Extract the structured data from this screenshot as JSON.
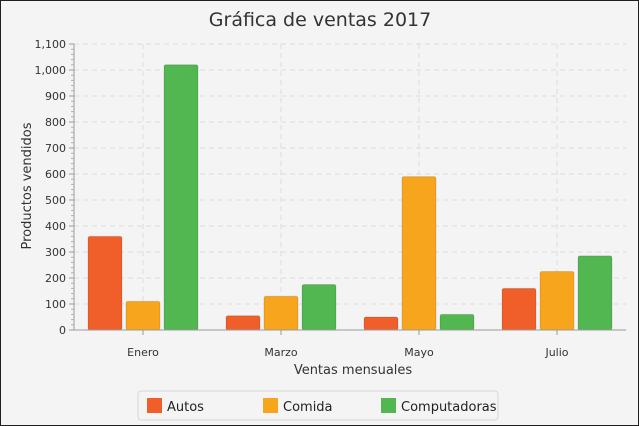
{
  "chart_data": {
    "type": "bar",
    "title": "Gráfica de ventas 2017",
    "xlabel": "Ventas mensuales",
    "ylabel": "Productos vendidos",
    "categories": [
      "Enero",
      "Marzo",
      "Mayo",
      "Julio"
    ],
    "ylim": [
      0,
      1100
    ],
    "ytick_labels": [
      "0",
      "100",
      "200",
      "300",
      "400",
      "500",
      "600",
      "700",
      "800",
      "900",
      "1,000",
      "1,100"
    ],
    "grid": true,
    "legend_position": "bottom",
    "series": [
      {
        "name": "Autos",
        "color": "#f05f2a",
        "values": [
          360,
          55,
          50,
          160
        ]
      },
      {
        "name": "Comida",
        "color": "#f7a51c",
        "values": [
          110,
          130,
          590,
          225
        ]
      },
      {
        "name": "Computadoras",
        "color": "#52b651",
        "values": [
          1020,
          175,
          60,
          285
        ]
      }
    ]
  }
}
